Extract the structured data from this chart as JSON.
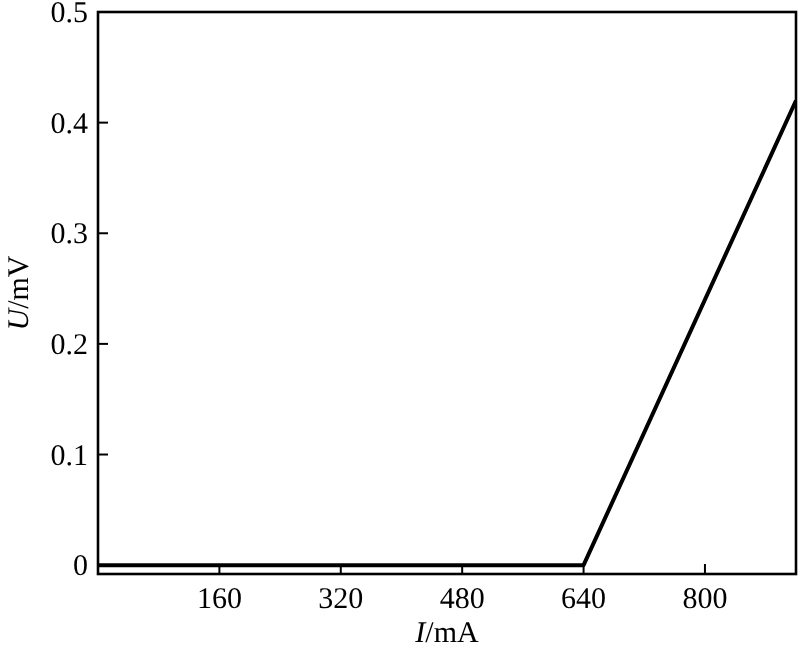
{
  "chart_data": {
    "type": "line",
    "xlabel": "I/mA",
    "ylabel": "U/mV",
    "series": [
      {
        "color": "#000000",
        "x": [
          0,
          640,
          920
        ],
        "values": [
          0,
          0,
          0.42
        ]
      }
    ],
    "xlim": [
      0,
      920
    ],
    "xticks": [
      160,
      320,
      480,
      640,
      800
    ],
    "ylim": [
      -0.008,
      0.5
    ],
    "yticks": [
      0,
      0.1,
      0.2,
      0.3,
      0.4,
      0.5
    ],
    "grid": false,
    "marker": "none",
    "line_style": "solid"
  }
}
